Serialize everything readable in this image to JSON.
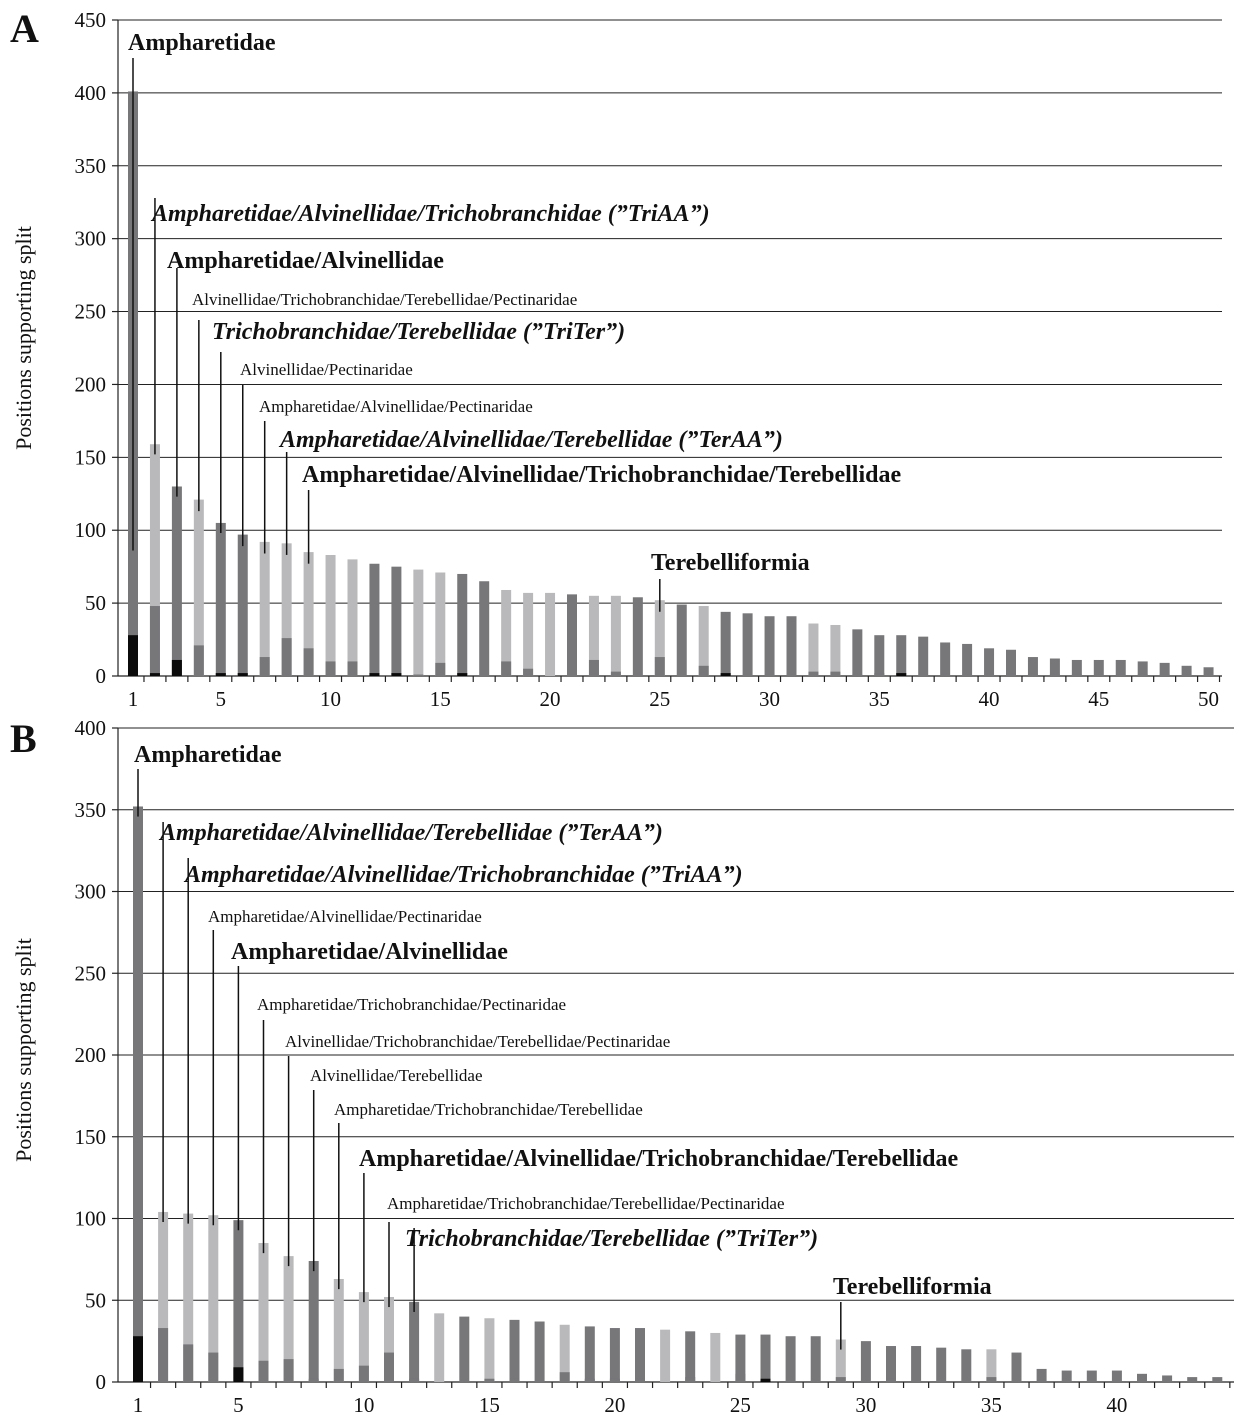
{
  "ylabel": "Positions supporting split",
  "colors": {
    "dark": "#77777a",
    "light": "#b9b9bb",
    "black": "#0b0b0b"
  },
  "chart_data": [
    {
      "panel": "A",
      "type": "bar",
      "stacked": true,
      "ylabel": "Positions supporting split",
      "ylim": [
        0,
        450
      ],
      "yticks": [
        0,
        50,
        100,
        150,
        200,
        250,
        300,
        350,
        400,
        450
      ],
      "xticks": [
        1,
        5,
        10,
        15,
        20,
        25,
        30,
        35,
        40,
        45,
        50
      ],
      "grid": true,
      "bar_style": [
        "dark",
        "light",
        "dark",
        "light",
        "dark",
        "dark",
        "light",
        "light",
        "light",
        "light",
        "light",
        "dark",
        "dark",
        "light",
        "light",
        "dark",
        "dark",
        "light",
        "light",
        "light",
        "dark",
        "light",
        "light",
        "dark",
        "light",
        "dark",
        "light",
        "dark",
        "dark",
        "dark",
        "dark",
        "light",
        "light",
        "dark",
        "dark",
        "dark",
        "dark",
        "dark",
        "dark",
        "dark",
        "dark",
        "dark",
        "dark",
        "dark",
        "dark",
        "dark",
        "dark",
        "dark",
        "dark",
        "dark"
      ],
      "series": [
        {
          "name": "total",
          "values": [
            401,
            159,
            130,
            121,
            105,
            97,
            92,
            91,
            85,
            83,
            80,
            77,
            75,
            73,
            71,
            70,
            65,
            59,
            57,
            57,
            56,
            55,
            55,
            54,
            52,
            49,
            48,
            44,
            43,
            41,
            41,
            36,
            35,
            32,
            28,
            28,
            27,
            23,
            22,
            19,
            18,
            13,
            12,
            11,
            11,
            11,
            10,
            9,
            7,
            6
          ]
        },
        {
          "name": "grey",
          "values": [
            28,
            48,
            11,
            21,
            2,
            2,
            13,
            26,
            19,
            10,
            10,
            2,
            2,
            1,
            9,
            2,
            0,
            10,
            5,
            0,
            0,
            11,
            3,
            0,
            13,
            0,
            7,
            2,
            0,
            0,
            0,
            3,
            3,
            1,
            2,
            2,
            0,
            0,
            0,
            0,
            2,
            1,
            1,
            1,
            0,
            0,
            1,
            1,
            0,
            0
          ]
        },
        {
          "name": "black",
          "values": [
            28,
            2,
            11,
            0,
            2,
            2,
            0,
            0,
            0,
            0,
            0,
            2,
            2,
            0,
            0,
            2,
            0,
            0,
            0,
            0,
            0,
            0,
            0,
            0,
            0,
            0,
            0,
            2,
            0,
            0,
            0,
            0,
            0,
            0,
            0,
            2,
            0,
            0,
            0,
            0,
            0,
            0,
            0,
            0,
            0,
            0,
            0,
            0,
            0,
            0
          ]
        }
      ],
      "annotations": [
        {
          "text": "Ampharetidae",
          "style": "bold",
          "bar": 1
        },
        {
          "text": "Ampharetidae/Alvinellidae/Trichobranchidae (”TriAA”)",
          "style": "bolditalic",
          "bar": 2
        },
        {
          "text": "Ampharetidae/Alvinellidae",
          "style": "bold",
          "bar": 3
        },
        {
          "text": "Alvinellidae/Trichobranchidae/Terebellidae/Pectinaridae",
          "style": "plain",
          "bar": 4
        },
        {
          "text": "Trichobranchidae/Terebellidae (”TriTer”)",
          "style": "bolditalic",
          "bar": 5
        },
        {
          "text": "Alvinellidae/Pectinaridae",
          "style": "plain",
          "bar": 6
        },
        {
          "text": "Ampharetidae/Alvinellidae/Pectinaridae",
          "style": "plain",
          "bar": 7
        },
        {
          "text": "Ampharetidae/Alvinellidae/Terebellidae (”TerAA”)",
          "style": "bolditalic",
          "bar": 8
        },
        {
          "text": "Ampharetidae/Alvinellidae/Trichobranchidae/Terebellidae",
          "style": "bold",
          "bar": 9
        },
        {
          "text": "Terebelliformia",
          "style": "bold",
          "bar": 25
        }
      ]
    },
    {
      "panel": "B",
      "type": "bar",
      "stacked": true,
      "ylabel": "Positions supporting split",
      "ylim": [
        0,
        400
      ],
      "yticks": [
        0,
        50,
        100,
        150,
        200,
        250,
        300,
        350,
        400
      ],
      "xticks": [
        1,
        5,
        10,
        15,
        20,
        25,
        30,
        35,
        40
      ],
      "grid": true,
      "bar_style": [
        "dark",
        "light",
        "light",
        "light",
        "dark",
        "light",
        "light",
        "dark",
        "light",
        "light",
        "light",
        "dark",
        "light",
        "dark",
        "light",
        "dark",
        "dark",
        "light",
        "dark",
        "dark",
        "dark",
        "light",
        "dark",
        "light",
        "dark",
        "dark",
        "dark",
        "dark",
        "light",
        "dark",
        "dark",
        "dark",
        "dark",
        "dark",
        "light",
        "dark",
        "dark",
        "dark",
        "dark",
        "dark",
        "dark",
        "dark",
        "dark",
        "dark"
      ],
      "series": [
        {
          "name": "total",
          "values": [
            352,
            104,
            103,
            102,
            99,
            85,
            77,
            74,
            63,
            55,
            52,
            49,
            42,
            40,
            39,
            38,
            37,
            35,
            34,
            33,
            33,
            32,
            31,
            30,
            29,
            29,
            28,
            28,
            26,
            25,
            22,
            22,
            21,
            20,
            20,
            18,
            8,
            7,
            7,
            7,
            5,
            4,
            3,
            3
          ]
        },
        {
          "name": "grey",
          "values": [
            28,
            33,
            23,
            18,
            9,
            13,
            14,
            2,
            8,
            10,
            18,
            2,
            0,
            0,
            2,
            2,
            0,
            6,
            2,
            2,
            2,
            0,
            3,
            0,
            5,
            2,
            0,
            0,
            3,
            0,
            2,
            0,
            0,
            0,
            3,
            0,
            0,
            0,
            0,
            0,
            0,
            0,
            0,
            0
          ]
        },
        {
          "name": "black",
          "values": [
            28,
            0,
            0,
            0,
            9,
            0,
            0,
            0,
            0,
            0,
            0,
            0,
            0,
            0,
            0,
            0,
            0,
            0,
            0,
            0,
            0,
            0,
            0,
            0,
            0,
            2,
            0,
            0,
            0,
            0,
            0,
            0,
            0,
            0,
            0,
            0,
            0,
            0,
            0,
            0,
            0,
            0,
            0,
            0
          ]
        }
      ],
      "annotations": [
        {
          "text": "Ampharetidae",
          "style": "bold",
          "bar": 1
        },
        {
          "text": "Ampharetidae/Alvinellidae/Terebellidae (”TerAA”)",
          "style": "bolditalic",
          "bar": 2
        },
        {
          "text": "Ampharetidae/Alvinellidae/Trichobranchidae (”TriAA”)",
          "style": "bolditalic",
          "bar": 3
        },
        {
          "text": "Ampharetidae/Alvinellidae/Pectinaridae",
          "style": "plain",
          "bar": 4
        },
        {
          "text": "Ampharetidae/Alvinellidae",
          "style": "bold",
          "bar": 5
        },
        {
          "text": "Ampharetidae/Trichobranchidae/Pectinaridae",
          "style": "plain",
          "bar": 6
        },
        {
          "text": "Alvinellidae/Trichobranchidae/Terebellidae/Pectinaridae",
          "style": "plain",
          "bar": 7
        },
        {
          "text": "Alvinellidae/Terebellidae",
          "style": "plain",
          "bar": 8
        },
        {
          "text": "Ampharetidae/Trichobranchidae/Terebellidae",
          "style": "plain",
          "bar": 9
        },
        {
          "text": "Ampharetidae/Alvinellidae/Trichobranchidae/Terebellidae",
          "style": "bold",
          "bar": 10
        },
        {
          "text": "Ampharetidae/Trichobranchidae/Terebellidae/Pectinaridae",
          "style": "plain",
          "bar": 11
        },
        {
          "text": "Trichobranchidae/Terebellidae (”TriTer”)",
          "style": "bolditalic",
          "bar": 12
        },
        {
          "text": "Terebelliformia",
          "style": "bold",
          "bar": 29
        }
      ]
    }
  ]
}
